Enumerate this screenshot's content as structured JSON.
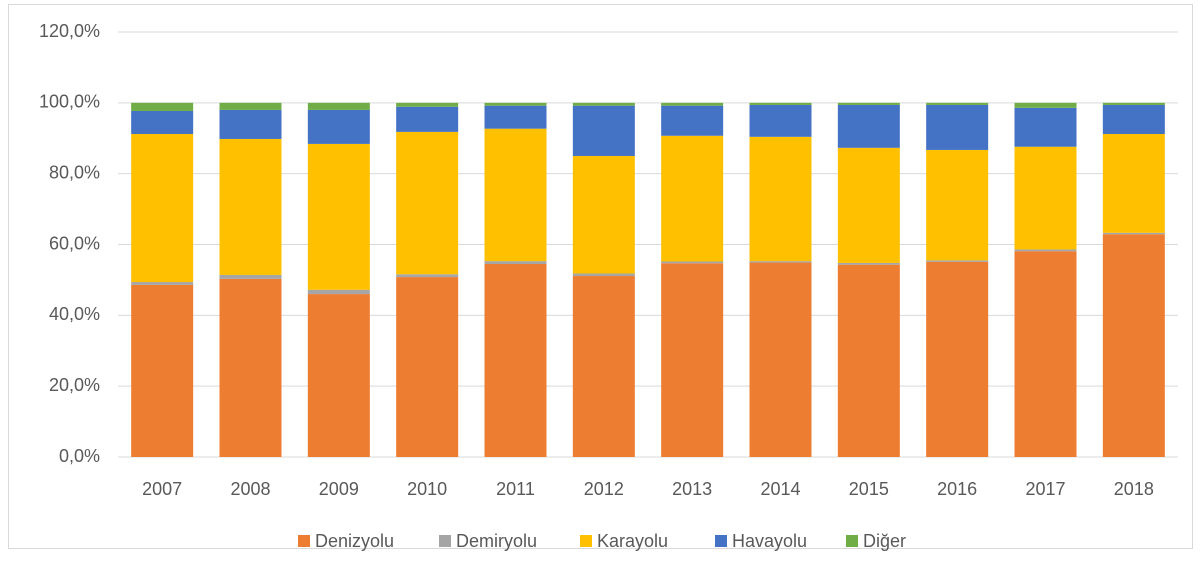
{
  "chart_data": {
    "type": "stacked_bar",
    "categories": [
      "2007",
      "2008",
      "2009",
      "2010",
      "2011",
      "2012",
      "2013",
      "2014",
      "2015",
      "2016",
      "2017",
      "2018"
    ],
    "series": [
      {
        "name": "Denizyolu",
        "color": "#ed7d31",
        "values": [
          48.6,
          50.3,
          46.0,
          50.8,
          54.5,
          51.1,
          54.7,
          54.9,
          54.3,
          55.1,
          58.1,
          62.9
        ]
      },
      {
        "name": "Demiryolu",
        "color": "#a5a5a5",
        "values": [
          0.8,
          1.1,
          1.2,
          0.8,
          0.8,
          0.7,
          0.5,
          0.4,
          0.5,
          0.4,
          0.5,
          0.4
        ]
      },
      {
        "name": "Karayolu",
        "color": "#ffc000",
        "values": [
          41.8,
          38.4,
          41.2,
          40.2,
          37.4,
          33.2,
          35.5,
          35.1,
          32.5,
          31.2,
          29.0,
          27.9
        ]
      },
      {
        "name": "Havayolu",
        "color": "#4472c4",
        "values": [
          6.5,
          8.2,
          9.6,
          7.1,
          6.5,
          14.2,
          8.5,
          9.0,
          12.1,
          12.7,
          11.0,
          8.2
        ]
      },
      {
        "name": "Diğer",
        "color": "#70ad47",
        "values": [
          2.3,
          2.0,
          2.0,
          1.1,
          0.8,
          0.8,
          0.8,
          0.6,
          0.6,
          0.6,
          1.4,
          0.6
        ]
      }
    ],
    "ylim": [
      0,
      120
    ],
    "yticks": [
      {
        "value": 0,
        "label": "0,0%"
      },
      {
        "value": 20,
        "label": "20,0%"
      },
      {
        "value": 40,
        "label": "40,0%"
      },
      {
        "value": 60,
        "label": "60,0%"
      },
      {
        "value": 80,
        "label": "80,0%"
      },
      {
        "value": 100,
        "label": "100,0%"
      },
      {
        "value": 120,
        "label": "120,0%"
      }
    ],
    "grid": true,
    "legend": "bottom"
  }
}
